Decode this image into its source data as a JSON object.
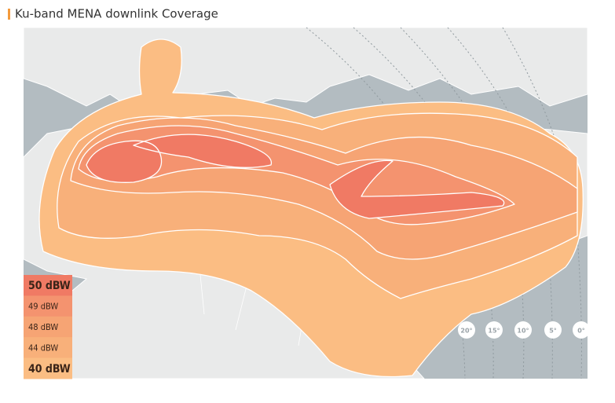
{
  "header": {
    "title": "Ku-band MENA downlink Coverage"
  },
  "legend": {
    "items": [
      {
        "label": "50 dBW",
        "color": "#f07a64"
      },
      {
        "label": "49 dBW",
        "color": "#f4936f"
      },
      {
        "label": "48 dBW",
        "color": "#f6a474"
      },
      {
        "label": "44 dBW",
        "color": "#f8b07a"
      },
      {
        "label": "40 dBW",
        "color": "#fbbd83"
      }
    ]
  },
  "elevation_labels": [
    "20°",
    "15°",
    "10°",
    "5°",
    "0°"
  ]
}
